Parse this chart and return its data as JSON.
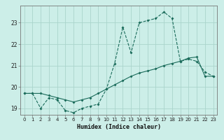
{
  "title": "",
  "xlabel": "Humidex (Indice chaleur)",
  "bg_color": "#cceee8",
  "grid_color": "#aad4cc",
  "line_color": "#1a6b5a",
  "series1_x": [
    0,
    1,
    2,
    3,
    4,
    5,
    6,
    7,
    8,
    9,
    10,
    11,
    12,
    13,
    14,
    15,
    16,
    17,
    18,
    19,
    20,
    21,
    22,
    23
  ],
  "series1_y": [
    19.7,
    19.7,
    19.0,
    19.5,
    19.4,
    18.9,
    18.8,
    19.0,
    19.1,
    19.2,
    19.9,
    21.1,
    22.8,
    21.6,
    23.0,
    23.1,
    23.2,
    23.5,
    23.2,
    21.2,
    21.3,
    21.2,
    20.7,
    20.5
  ],
  "series2_x": [
    0,
    1,
    2,
    3,
    4,
    5,
    6,
    7,
    8,
    9,
    10,
    11,
    12,
    13,
    14,
    15,
    16,
    17,
    18,
    19,
    20,
    21,
    22,
    23
  ],
  "series2_y": [
    19.7,
    19.7,
    19.7,
    19.6,
    19.5,
    19.4,
    19.3,
    19.4,
    19.5,
    19.7,
    19.9,
    20.1,
    20.3,
    20.5,
    20.65,
    20.75,
    20.85,
    21.0,
    21.1,
    21.2,
    21.35,
    21.4,
    20.5,
    20.5
  ],
  "xlim": [
    -0.5,
    23.5
  ],
  "ylim": [
    18.7,
    23.8
  ],
  "yticks": [
    19,
    20,
    21,
    22,
    23
  ],
  "xticks": [
    0,
    1,
    2,
    3,
    4,
    5,
    6,
    7,
    8,
    9,
    10,
    11,
    12,
    13,
    14,
    15,
    16,
    17,
    18,
    19,
    20,
    21,
    22,
    23
  ],
  "xlabel_fontsize": 6,
  "tick_fontsize": 5,
  "marker_size": 2.0,
  "lw": 0.8
}
